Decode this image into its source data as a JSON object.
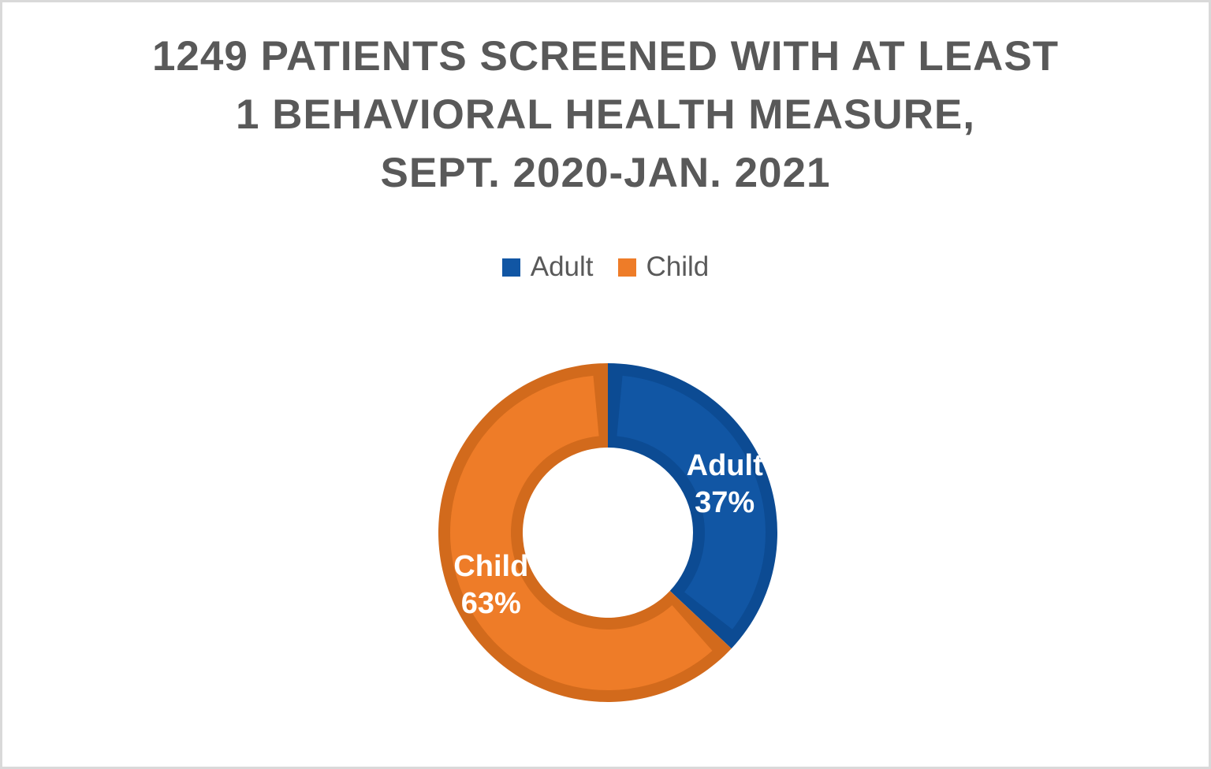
{
  "page": {
    "background_color": "#ffffff",
    "frame_color": "#d9d9d9"
  },
  "title": {
    "lines": [
      "1249 PATIENTS SCREENED WITH AT LEAST",
      "1 BEHAVIORAL HEALTH MEASURE,",
      "SEPT. 2020-JAN. 2021"
    ],
    "full_text": "1249 PATIENTS SCREENED WITH AT LEAST 1 BEHAVIORAL HEALTH MEASURE, SEPT. 2020-JAN. 2021",
    "color": "#595959"
  },
  "legend": {
    "position": "top-center",
    "text_color": "#595959",
    "items": [
      {
        "label": "Adult",
        "color": "#1156a4"
      },
      {
        "label": "Child",
        "color": "#ee7c28"
      }
    ]
  },
  "chart_data": {
    "type": "pie",
    "subtype": "donut",
    "title": "1249 PATIENTS SCREENED WITH AT LEAST 1 BEHAVIORAL HEALTH MEASURE, SEPT. 2020-JAN. 2021",
    "total_patients": 1249,
    "categories": [
      "Adult",
      "Child"
    ],
    "values": [
      37,
      63
    ],
    "unit": "%",
    "series": [
      {
        "name": "Adult",
        "value": 37,
        "pct_label": "37%",
        "color": "#1156a4",
        "edge_color": "#0c4b93"
      },
      {
        "name": "Child",
        "value": 63,
        "pct_label": "63%",
        "color": "#ee7c28",
        "edge_color": "#d26a1c"
      }
    ],
    "start_angle_deg": 0,
    "direction": "clockwise",
    "hole_ratio": 0.5,
    "label_color": "#ffffff",
    "legend_position": "top",
    "grid": false
  }
}
